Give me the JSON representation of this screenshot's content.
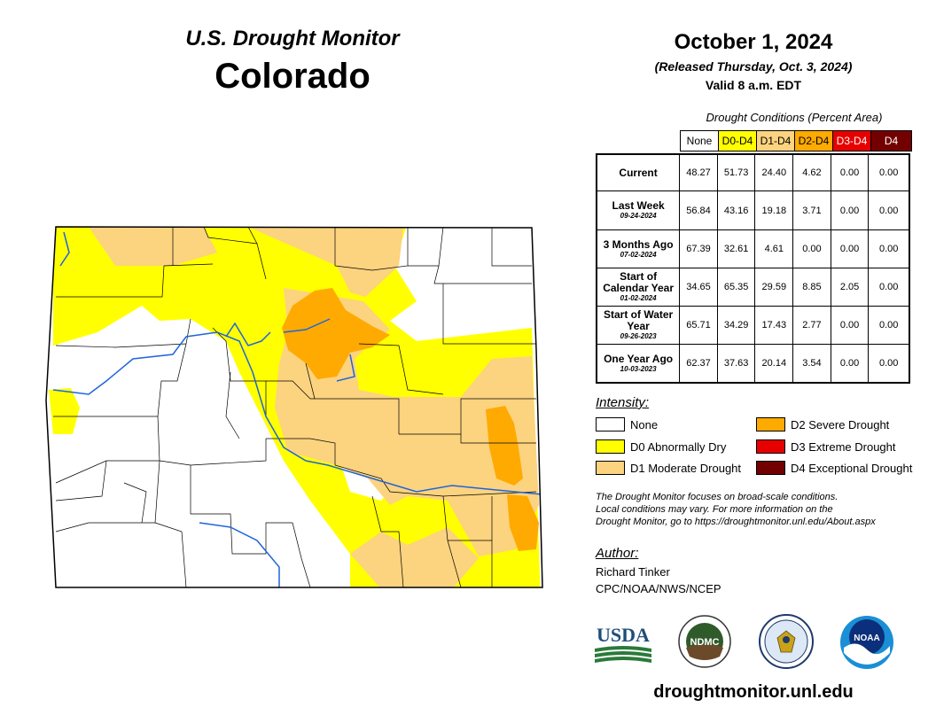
{
  "header": {
    "subtitle": "U.S. Drought Monitor",
    "state": "Colorado",
    "date": "October 1, 2024",
    "released": "(Released Thursday, Oct. 3, 2024)",
    "valid": "Valid 8 a.m. EDT"
  },
  "table": {
    "caption": "Drought Conditions (Percent Area)",
    "columns": [
      {
        "label": "None",
        "color": "#ffffff",
        "text_color": "#000000"
      },
      {
        "label": "D0-D4",
        "color": "#ffff00",
        "text_color": "#000000"
      },
      {
        "label": "D1-D4",
        "color": "#fcd37f",
        "text_color": "#000000"
      },
      {
        "label": "D2-D4",
        "color": "#ffaa00",
        "text_color": "#000000"
      },
      {
        "label": "D3-D4",
        "color": "#e60000",
        "text_color": "#ffffff"
      },
      {
        "label": "D4",
        "color": "#730000",
        "text_color": "#ffffff"
      }
    ],
    "rows": [
      {
        "label": "Current",
        "date": "",
        "values": [
          "48.27",
          "51.73",
          "24.40",
          "4.62",
          "0.00",
          "0.00"
        ]
      },
      {
        "label": "Last Week",
        "date": "09-24-2024",
        "values": [
          "56.84",
          "43.16",
          "19.18",
          "3.71",
          "0.00",
          "0.00"
        ]
      },
      {
        "label": "3 Months Ago",
        "date": "07-02-2024",
        "values": [
          "67.39",
          "32.61",
          "4.61",
          "0.00",
          "0.00",
          "0.00"
        ]
      },
      {
        "label": "Start of Calendar Year",
        "date": "01-02-2024",
        "values": [
          "34.65",
          "65.35",
          "29.59",
          "8.85",
          "2.05",
          "0.00"
        ]
      },
      {
        "label": "Start of Water Year",
        "date": "09-26-2023",
        "values": [
          "65.71",
          "34.29",
          "17.43",
          "2.77",
          "0.00",
          "0.00"
        ]
      },
      {
        "label": "One Year Ago",
        "date": "10-03-2023",
        "values": [
          "62.37",
          "37.63",
          "20.14",
          "3.54",
          "0.00",
          "0.00"
        ]
      }
    ]
  },
  "legend": {
    "title": "Intensity:",
    "items": [
      {
        "label": "None",
        "color": "#ffffff"
      },
      {
        "label": "D0 Abnormally Dry",
        "color": "#ffff00"
      },
      {
        "label": "D1 Moderate Drought",
        "color": "#fcd37f"
      },
      {
        "label": "D2 Severe Drought",
        "color": "#ffaa00"
      },
      {
        "label": "D3 Extreme Drought",
        "color": "#e60000"
      },
      {
        "label": "D4 Exceptional Drought",
        "color": "#730000"
      }
    ]
  },
  "note": {
    "line1": "The Drought Monitor focuses on broad-scale conditions.",
    "line2": "Local conditions may vary. For more information on the",
    "line3": "Drought Monitor, go to https://droughtmonitor.unl.edu/About.aspx"
  },
  "author": {
    "title": "Author:",
    "name": "Richard Tinker",
    "org": "CPC/NOAA/NWS/NCEP"
  },
  "logos": {
    "usda": "USDA",
    "ndmc": "NDMC",
    "noaa": "NOAA"
  },
  "footer_url": "droughtmonitor.unl.edu"
}
